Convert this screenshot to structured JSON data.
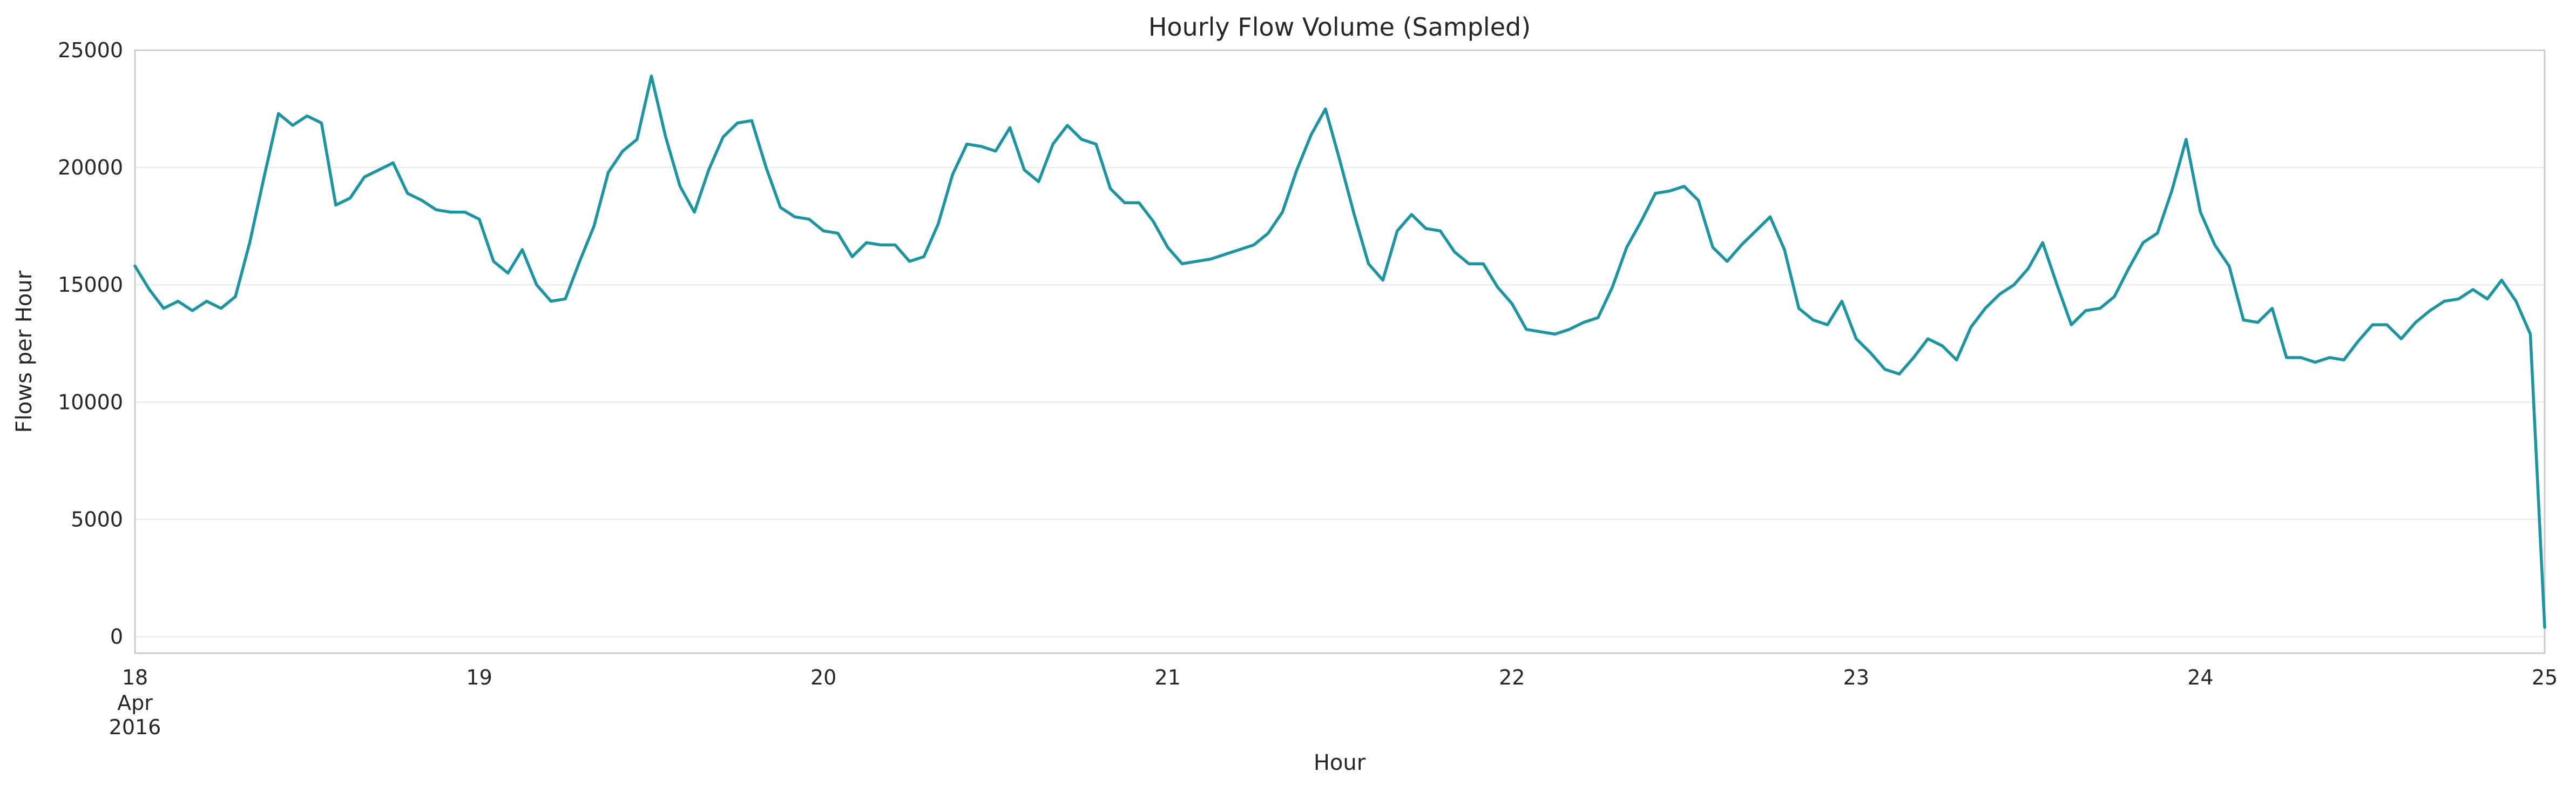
{
  "chart_data": {
    "type": "line",
    "title": "Hourly Flow Volume (Sampled)",
    "xlabel": "Hour",
    "ylabel": "Flows per Hour",
    "ylim": [
      -700,
      25000
    ],
    "yticks": [
      0,
      5000,
      10000,
      15000,
      20000,
      25000
    ],
    "xlim": [
      "2016-04-18 00:00",
      "2016-04-25 00:00"
    ],
    "xticks": [
      {
        "x": "2016-04-18",
        "label": "18",
        "sub": [
          "Apr",
          "2016"
        ]
      },
      {
        "x": "2016-04-19",
        "label": "19"
      },
      {
        "x": "2016-04-20",
        "label": "20"
      },
      {
        "x": "2016-04-21",
        "label": "21"
      },
      {
        "x": "2016-04-22",
        "label": "22"
      },
      {
        "x": "2016-04-23",
        "label": "23"
      },
      {
        "x": "2016-04-24",
        "label": "24"
      },
      {
        "x": "2016-04-25",
        "label": "25"
      }
    ],
    "grid": true,
    "legend": "none",
    "color": "#1a96a3",
    "series": [
      {
        "x_start": "2016-04-18 00:00",
        "x_step_hours": 1,
        "x_end": "2016-04-25 00:00",
        "values": [
          15800,
          14800,
          14000,
          14300,
          13900,
          14300,
          14000,
          14500,
          16800,
          19600,
          22300,
          21800,
          22200,
          21900,
          18400,
          18700,
          19600,
          19900,
          20200,
          18900,
          18600,
          18200,
          18100,
          18100,
          17800,
          16000,
          15500,
          16500,
          15000,
          14300,
          14400,
          16000,
          17500,
          19800,
          20700,
          21200,
          23900,
          21300,
          19200,
          18100,
          19900,
          21300,
          21900,
          22000,
          20000,
          18300,
          17900,
          17800,
          17300,
          17200,
          16200,
          16800,
          16700,
          16700,
          16000,
          16200,
          17600,
          19700,
          21000,
          20900,
          20700,
          21700,
          19900,
          19400,
          21000,
          21800,
          21200,
          21000,
          19100,
          18500,
          18500,
          17700,
          16600,
          15900,
          16000,
          16100,
          16300,
          16500,
          16700,
          17200,
          18100,
          19900,
          21400,
          22500,
          20300,
          18000,
          15900,
          15200,
          17300,
          18000,
          17400,
          17300,
          16400,
          15900,
          15900,
          14900,
          14200,
          13100,
          13000,
          12900,
          13100,
          13400,
          13600,
          14900,
          16600,
          17700,
          18900,
          19000,
          19200,
          18600,
          16600,
          16000,
          16700,
          17300,
          17900,
          16500,
          14000,
          13500,
          13300,
          14300,
          12700,
          12100,
          11400,
          11200,
          11900,
          12700,
          12400,
          11800,
          13200,
          14000,
          14600,
          15000,
          15700,
          16800,
          15000,
          13300,
          13900,
          14000,
          14500,
          15700,
          16800,
          17200,
          19000,
          21200,
          18100,
          16700,
          15800,
          13500,
          13400,
          14000,
          11900,
          11900,
          11700,
          11900,
          11800,
          12600,
          13300,
          13300,
          12700,
          13400,
          13900,
          14300,
          14400,
          14800,
          14400,
          15200,
          14300,
          12900,
          400
        ]
      }
    ]
  }
}
